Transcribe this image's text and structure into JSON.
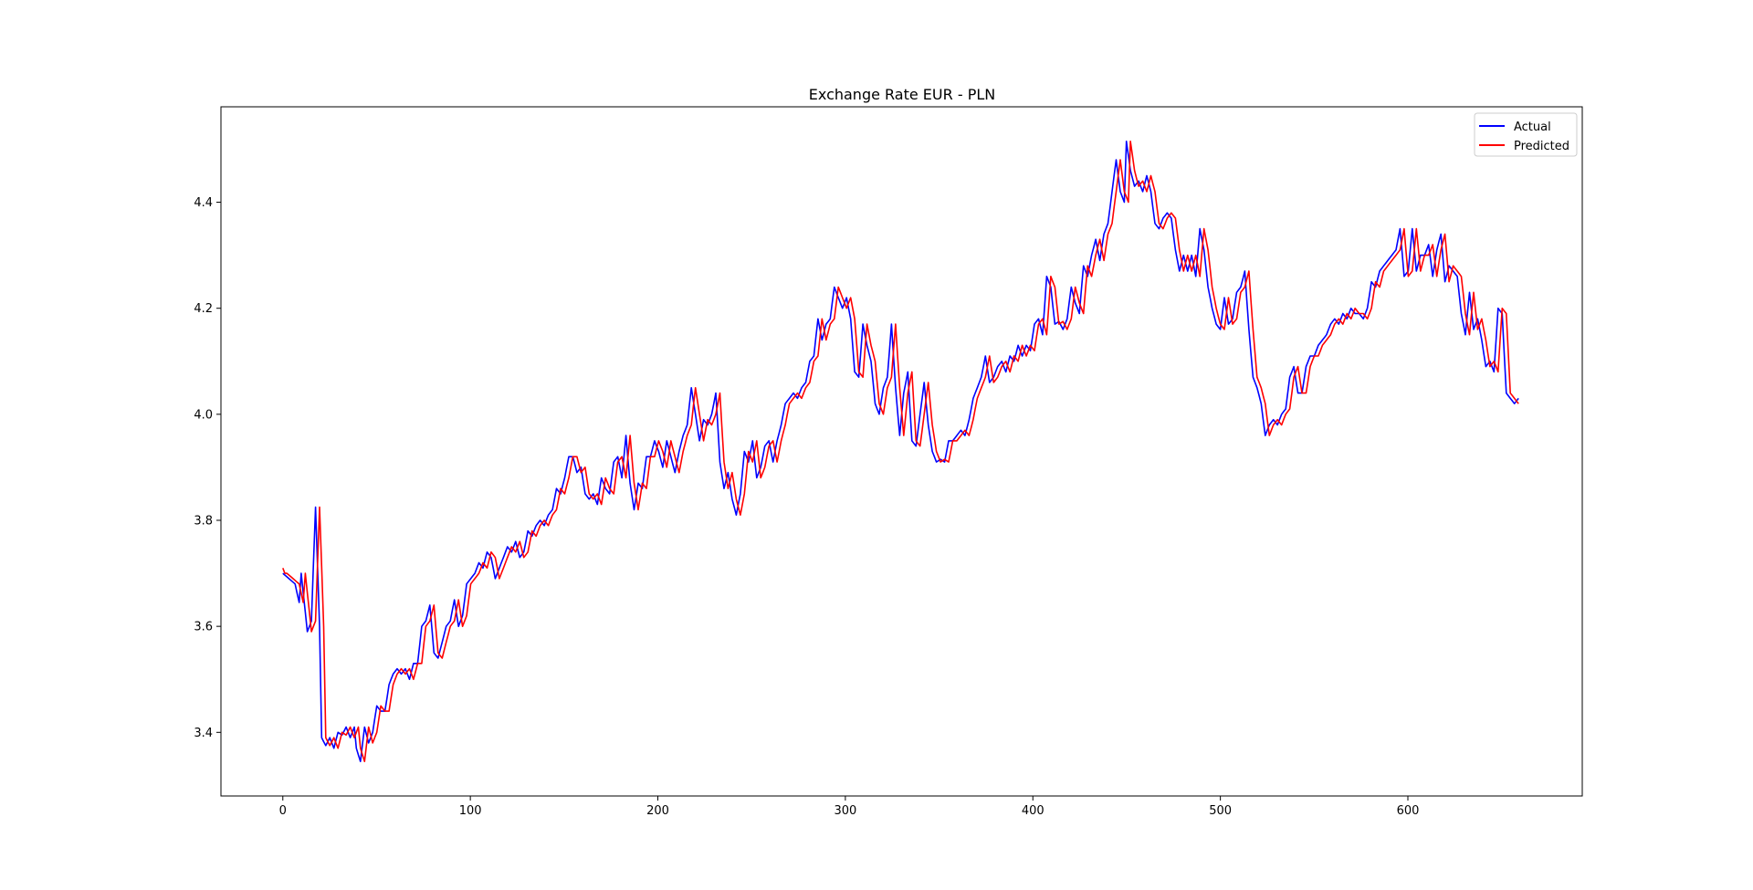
{
  "chart_data": {
    "type": "line",
    "title": "Exchange Rate EUR - PLN",
    "xlabel": "",
    "ylabel": "",
    "xlim": [
      -33,
      693
    ],
    "ylim": [
      3.28,
      4.58
    ],
    "xticks": [
      0,
      100,
      200,
      300,
      400,
      500,
      600
    ],
    "yticks": [
      3.4,
      3.6,
      3.8,
      4.0,
      4.2,
      4.4
    ],
    "ytick_labels": [
      "3.4",
      "3.6",
      "3.8",
      "4.0",
      "4.2",
      "4.4"
    ],
    "grid": false,
    "legend_position": "top-right",
    "x_end": 659,
    "anchors": [
      [
        0,
        3.7
      ],
      [
        3,
        3.69
      ],
      [
        6,
        3.68
      ],
      [
        8,
        3.645
      ],
      [
        9,
        3.7
      ],
      [
        12,
        3.59
      ],
      [
        14,
        3.61
      ],
      [
        16,
        3.825
      ],
      [
        18,
        3.6
      ],
      [
        19,
        3.39
      ],
      [
        21,
        3.375
      ],
      [
        23,
        3.39
      ],
      [
        25,
        3.37
      ],
      [
        27,
        3.4
      ],
      [
        29,
        3.395
      ],
      [
        31,
        3.41
      ],
      [
        33,
        3.39
      ],
      [
        35,
        3.41
      ],
      [
        36,
        3.37
      ],
      [
        38,
        3.345
      ],
      [
        40,
        3.41
      ],
      [
        42,
        3.38
      ],
      [
        44,
        3.4
      ],
      [
        46,
        3.45
      ],
      [
        48,
        3.44
      ],
      [
        50,
        3.44
      ],
      [
        52,
        3.49
      ],
      [
        54,
        3.51
      ],
      [
        56,
        3.52
      ],
      [
        58,
        3.51
      ],
      [
        60,
        3.52
      ],
      [
        62,
        3.5
      ],
      [
        64,
        3.53
      ],
      [
        66,
        3.53
      ],
      [
        68,
        3.6
      ],
      [
        70,
        3.61
      ],
      [
        72,
        3.64
      ],
      [
        74,
        3.55
      ],
      [
        76,
        3.54
      ],
      [
        78,
        3.57
      ],
      [
        80,
        3.6
      ],
      [
        82,
        3.61
      ],
      [
        84,
        3.65
      ],
      [
        86,
        3.6
      ],
      [
        88,
        3.62
      ],
      [
        90,
        3.68
      ],
      [
        92,
        3.69
      ],
      [
        94,
        3.7
      ],
      [
        96,
        3.72
      ],
      [
        98,
        3.71
      ],
      [
        100,
        3.74
      ],
      [
        102,
        3.73
      ],
      [
        104,
        3.69
      ],
      [
        106,
        3.71
      ],
      [
        108,
        3.73
      ],
      [
        110,
        3.75
      ],
      [
        112,
        3.74
      ],
      [
        114,
        3.76
      ],
      [
        116,
        3.73
      ],
      [
        118,
        3.74
      ],
      [
        120,
        3.78
      ],
      [
        122,
        3.77
      ],
      [
        124,
        3.79
      ],
      [
        126,
        3.8
      ],
      [
        128,
        3.79
      ],
      [
        130,
        3.81
      ],
      [
        132,
        3.82
      ],
      [
        134,
        3.86
      ],
      [
        136,
        3.85
      ],
      [
        138,
        3.88
      ],
      [
        140,
        3.92
      ],
      [
        142,
        3.92
      ],
      [
        144,
        3.89
      ],
      [
        146,
        3.9
      ],
      [
        148,
        3.85
      ],
      [
        150,
        3.84
      ],
      [
        152,
        3.85
      ],
      [
        154,
        3.83
      ],
      [
        156,
        3.88
      ],
      [
        158,
        3.86
      ],
      [
        160,
        3.85
      ],
      [
        162,
        3.91
      ],
      [
        164,
        3.92
      ],
      [
        166,
        3.88
      ],
      [
        168,
        3.96
      ],
      [
        170,
        3.87
      ],
      [
        172,
        3.82
      ],
      [
        174,
        3.87
      ],
      [
        176,
        3.86
      ],
      [
        178,
        3.92
      ],
      [
        180,
        3.92
      ],
      [
        182,
        3.95
      ],
      [
        184,
        3.93
      ],
      [
        186,
        3.9
      ],
      [
        188,
        3.95
      ],
      [
        190,
        3.92
      ],
      [
        192,
        3.89
      ],
      [
        194,
        3.93
      ],
      [
        196,
        3.96
      ],
      [
        198,
        3.98
      ],
      [
        200,
        4.05
      ],
      [
        202,
        4.0
      ],
      [
        204,
        3.95
      ],
      [
        206,
        3.99
      ],
      [
        208,
        3.98
      ],
      [
        210,
        4.0
      ],
      [
        212,
        4.04
      ],
      [
        214,
        3.91
      ],
      [
        216,
        3.86
      ],
      [
        218,
        3.89
      ],
      [
        220,
        3.84
      ],
      [
        222,
        3.81
      ],
      [
        224,
        3.85
      ],
      [
        226,
        3.93
      ],
      [
        228,
        3.91
      ],
      [
        230,
        3.95
      ],
      [
        232,
        3.88
      ],
      [
        234,
        3.9
      ],
      [
        236,
        3.94
      ],
      [
        238,
        3.95
      ],
      [
        240,
        3.91
      ],
      [
        242,
        3.95
      ],
      [
        244,
        3.98
      ],
      [
        246,
        4.02
      ],
      [
        248,
        4.03
      ],
      [
        250,
        4.04
      ],
      [
        252,
        4.03
      ],
      [
        254,
        4.05
      ],
      [
        256,
        4.06
      ],
      [
        258,
        4.1
      ],
      [
        260,
        4.11
      ],
      [
        262,
        4.18
      ],
      [
        264,
        4.14
      ],
      [
        266,
        4.17
      ],
      [
        268,
        4.18
      ],
      [
        270,
        4.24
      ],
      [
        272,
        4.22
      ],
      [
        274,
        4.2
      ],
      [
        276,
        4.22
      ],
      [
        278,
        4.18
      ],
      [
        280,
        4.08
      ],
      [
        282,
        4.07
      ],
      [
        284,
        4.17
      ],
      [
        286,
        4.13
      ],
      [
        288,
        4.1
      ],
      [
        290,
        4.02
      ],
      [
        292,
        4.0
      ],
      [
        294,
        4.05
      ],
      [
        296,
        4.07
      ],
      [
        298,
        4.17
      ],
      [
        300,
        4.05
      ],
      [
        302,
        3.96
      ],
      [
        304,
        4.04
      ],
      [
        306,
        4.08
      ],
      [
        308,
        3.95
      ],
      [
        310,
        3.94
      ],
      [
        312,
        4.0
      ],
      [
        314,
        4.06
      ],
      [
        316,
        3.98
      ],
      [
        318,
        3.93
      ],
      [
        320,
        3.91
      ],
      [
        322,
        3.915
      ],
      [
        324,
        3.91
      ],
      [
        326,
        3.95
      ],
      [
        328,
        3.95
      ],
      [
        330,
        3.96
      ],
      [
        332,
        3.97
      ],
      [
        334,
        3.96
      ],
      [
        336,
        3.99
      ],
      [
        338,
        4.03
      ],
      [
        340,
        4.05
      ],
      [
        342,
        4.07
      ],
      [
        344,
        4.11
      ],
      [
        346,
        4.06
      ],
      [
        348,
        4.07
      ],
      [
        350,
        4.09
      ],
      [
        352,
        4.1
      ],
      [
        354,
        4.08
      ],
      [
        356,
        4.11
      ],
      [
        358,
        4.1
      ],
      [
        360,
        4.13
      ],
      [
        362,
        4.11
      ],
      [
        364,
        4.13
      ],
      [
        366,
        4.12
      ],
      [
        368,
        4.17
      ],
      [
        370,
        4.18
      ],
      [
        372,
        4.15
      ],
      [
        374,
        4.26
      ],
      [
        376,
        4.24
      ],
      [
        378,
        4.17
      ],
      [
        380,
        4.175
      ],
      [
        382,
        4.16
      ],
      [
        384,
        4.18
      ],
      [
        386,
        4.24
      ],
      [
        388,
        4.21
      ],
      [
        390,
        4.19
      ],
      [
        392,
        4.28
      ],
      [
        394,
        4.26
      ],
      [
        396,
        4.3
      ],
      [
        398,
        4.33
      ],
      [
        400,
        4.29
      ],
      [
        402,
        4.34
      ],
      [
        404,
        4.36
      ],
      [
        406,
        4.42
      ],
      [
        408,
        4.48
      ],
      [
        410,
        4.42
      ],
      [
        412,
        4.4
      ],
      [
        413,
        4.515
      ],
      [
        415,
        4.46
      ],
      [
        417,
        4.43
      ],
      [
        419,
        4.44
      ],
      [
        421,
        4.42
      ],
      [
        423,
        4.45
      ],
      [
        425,
        4.42
      ],
      [
        427,
        4.36
      ],
      [
        429,
        4.35
      ],
      [
        431,
        4.37
      ],
      [
        433,
        4.38
      ],
      [
        435,
        4.37
      ],
      [
        437,
        4.31
      ],
      [
        439,
        4.27
      ],
      [
        441,
        4.3
      ],
      [
        443,
        4.27
      ],
      [
        445,
        4.3
      ],
      [
        447,
        4.26
      ],
      [
        449,
        4.35
      ],
      [
        451,
        4.31
      ],
      [
        453,
        4.24
      ],
      [
        455,
        4.2
      ],
      [
        457,
        4.17
      ],
      [
        459,
        4.16
      ],
      [
        461,
        4.22
      ],
      [
        463,
        4.17
      ],
      [
        465,
        4.18
      ],
      [
        467,
        4.23
      ],
      [
        469,
        4.24
      ],
      [
        471,
        4.27
      ],
      [
        473,
        4.16
      ],
      [
        475,
        4.07
      ],
      [
        477,
        4.05
      ],
      [
        479,
        4.02
      ],
      [
        481,
        3.96
      ],
      [
        483,
        3.98
      ],
      [
        485,
        3.99
      ],
      [
        487,
        3.98
      ],
      [
        489,
        4.0
      ],
      [
        491,
        4.01
      ],
      [
        493,
        4.07
      ],
      [
        495,
        4.09
      ],
      [
        497,
        4.04
      ],
      [
        499,
        4.04
      ],
      [
        501,
        4.09
      ],
      [
        503,
        4.11
      ],
      [
        505,
        4.11
      ],
      [
        507,
        4.13
      ],
      [
        509,
        4.14
      ],
      [
        511,
        4.15
      ],
      [
        513,
        4.17
      ],
      [
        515,
        4.18
      ],
      [
        517,
        4.17
      ],
      [
        519,
        4.19
      ],
      [
        521,
        4.18
      ],
      [
        523,
        4.2
      ],
      [
        525,
        4.19
      ],
      [
        527,
        4.19
      ],
      [
        529,
        4.18
      ],
      [
        531,
        4.2
      ],
      [
        533,
        4.25
      ],
      [
        535,
        4.24
      ],
      [
        537,
        4.27
      ],
      [
        539,
        4.28
      ],
      [
        541,
        4.29
      ],
      [
        543,
        4.3
      ],
      [
        545,
        4.31
      ],
      [
        547,
        4.35
      ],
      [
        549,
        4.26
      ],
      [
        551,
        4.27
      ],
      [
        553,
        4.35
      ],
      [
        555,
        4.27
      ],
      [
        557,
        4.3
      ],
      [
        559,
        4.3
      ],
      [
        561,
        4.32
      ],
      [
        563,
        4.26
      ],
      [
        565,
        4.31
      ],
      [
        567,
        4.34
      ],
      [
        569,
        4.25
      ],
      [
        571,
        4.28
      ],
      [
        573,
        4.27
      ],
      [
        575,
        4.26
      ],
      [
        577,
        4.19
      ],
      [
        579,
        4.15
      ],
      [
        581,
        4.23
      ],
      [
        583,
        4.16
      ],
      [
        585,
        4.18
      ],
      [
        587,
        4.14
      ],
      [
        589,
        4.09
      ],
      [
        591,
        4.1
      ],
      [
        593,
        4.08
      ],
      [
        595,
        4.2
      ],
      [
        597,
        4.19
      ],
      [
        599,
        4.04
      ],
      [
        601,
        4.03
      ],
      [
        603,
        4.02
      ],
      [
        605,
        4.03
      ]
    ],
    "series": [
      {
        "name": "Actual",
        "color": "#0000ff",
        "lag": 0,
        "offset": 0.0
      },
      {
        "name": "Predicted",
        "color": "#ff0000",
        "lag": 2,
        "offset": 0.0
      }
    ]
  }
}
